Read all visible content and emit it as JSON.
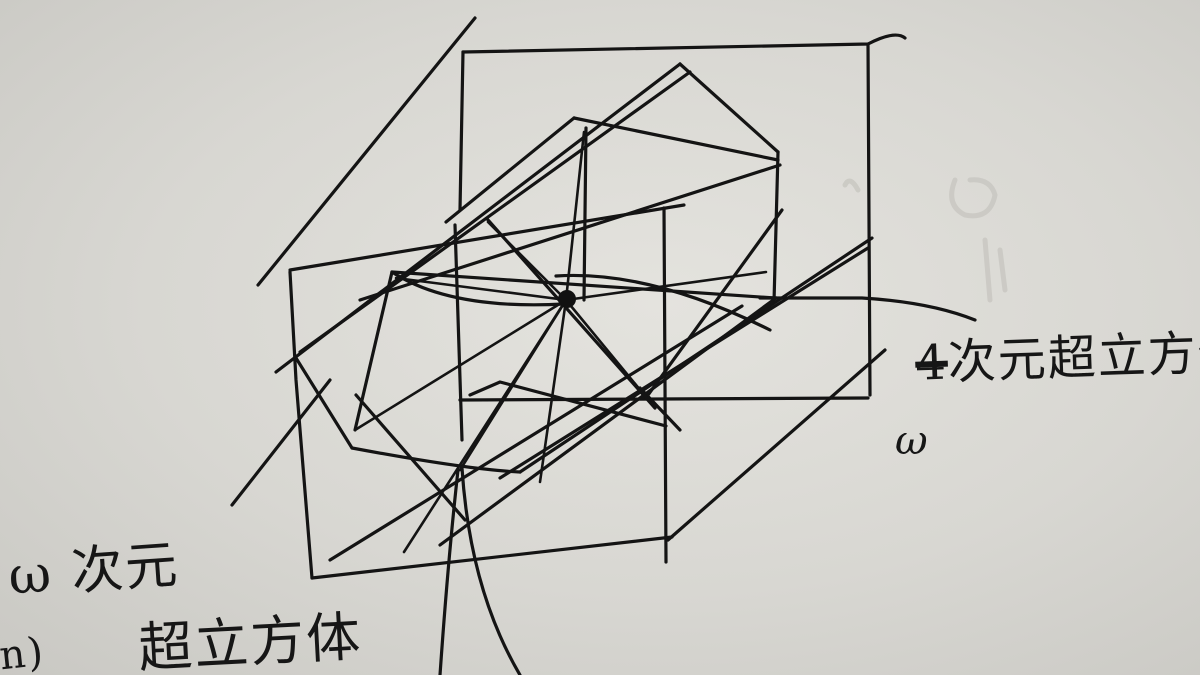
{
  "annotations": {
    "right_struck": "4",
    "right_text": "次元超立方体",
    "right_variable": "ω",
    "left_top": "ω 次元",
    "left_bottom": "超立方体",
    "left_edge": "(n)"
  }
}
